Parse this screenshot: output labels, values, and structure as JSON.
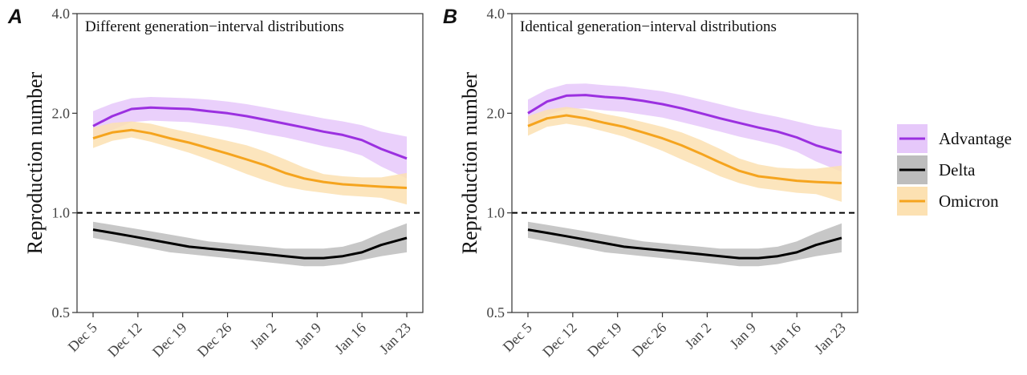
{
  "colors": {
    "advantage": "#9B30E0",
    "advantage_band": "#E6C8FA",
    "delta": "#000000",
    "delta_band": "#BDBDBD",
    "omicron": "#F5A41E",
    "omicron_band": "#FCE1B2"
  },
  "legend": {
    "items": [
      {
        "key": "advantage",
        "label": "Advantage"
      },
      {
        "key": "delta",
        "label": "Delta"
      },
      {
        "key": "omicron",
        "label": "Omicron"
      }
    ]
  },
  "chart_data": [
    {
      "type": "line",
      "panel_label": "A",
      "title": "Different generation−interval distributions",
      "ylabel": "Reproduction number",
      "xlabel": "",
      "y_scale": "log",
      "ylim": [
        0.5,
        4.0
      ],
      "y_ticks": [
        0.5,
        1.0,
        2.0,
        4.0
      ],
      "y_tick_labels": [
        "0.5",
        "1.0",
        "2.0",
        "4.0"
      ],
      "x_dates": [
        "Dec 5",
        "Dec 8",
        "Dec 11",
        "Dec 14",
        "Dec 17",
        "Dec 20",
        "Dec 23",
        "Dec 26",
        "Dec 29",
        "Jan 1",
        "Jan 4",
        "Jan 7",
        "Jan 10",
        "Jan 13",
        "Jan 16",
        "Jan 19",
        "Jan 23"
      ],
      "x_tick_labels": [
        "Dec 5",
        "Dec 12",
        "Dec 19",
        "Dec 26",
        "Jan 2",
        "Jan 9",
        "Jan 16",
        "Jan 23"
      ],
      "reference_line": 1.0,
      "grid": false,
      "series": [
        {
          "name": "Advantage",
          "key": "advantage",
          "values": [
            1.83,
            1.96,
            2.06,
            2.08,
            2.07,
            2.06,
            2.03,
            2.0,
            1.96,
            1.91,
            1.86,
            1.81,
            1.76,
            1.72,
            1.66,
            1.56,
            1.46
          ],
          "lower": [
            1.65,
            1.78,
            1.88,
            1.9,
            1.89,
            1.88,
            1.85,
            1.82,
            1.78,
            1.73,
            1.69,
            1.64,
            1.59,
            1.55,
            1.49,
            1.38,
            1.27
          ],
          "upper": [
            2.03,
            2.14,
            2.22,
            2.24,
            2.23,
            2.22,
            2.2,
            2.17,
            2.13,
            2.08,
            2.03,
            1.98,
            1.93,
            1.89,
            1.84,
            1.76,
            1.7
          ]
        },
        {
          "name": "Delta",
          "key": "delta",
          "values": [
            0.89,
            0.87,
            0.85,
            0.83,
            0.81,
            0.79,
            0.78,
            0.77,
            0.76,
            0.75,
            0.74,
            0.73,
            0.73,
            0.74,
            0.76,
            0.8,
            0.84
          ],
          "lower": [
            0.84,
            0.82,
            0.8,
            0.78,
            0.76,
            0.75,
            0.74,
            0.73,
            0.72,
            0.71,
            0.7,
            0.69,
            0.69,
            0.7,
            0.72,
            0.74,
            0.76
          ],
          "upper": [
            0.94,
            0.92,
            0.9,
            0.88,
            0.86,
            0.84,
            0.82,
            0.81,
            0.8,
            0.79,
            0.78,
            0.78,
            0.78,
            0.79,
            0.82,
            0.87,
            0.93
          ]
        },
        {
          "name": "Omicron",
          "key": "omicron",
          "values": [
            1.68,
            1.75,
            1.78,
            1.74,
            1.68,
            1.63,
            1.57,
            1.51,
            1.45,
            1.39,
            1.32,
            1.27,
            1.24,
            1.22,
            1.21,
            1.2,
            1.19
          ],
          "lower": [
            1.57,
            1.65,
            1.69,
            1.64,
            1.58,
            1.52,
            1.45,
            1.38,
            1.31,
            1.25,
            1.2,
            1.17,
            1.15,
            1.13,
            1.12,
            1.11,
            1.06
          ],
          "upper": [
            1.81,
            1.87,
            1.89,
            1.86,
            1.8,
            1.75,
            1.7,
            1.65,
            1.6,
            1.53,
            1.45,
            1.37,
            1.31,
            1.29,
            1.28,
            1.28,
            1.32
          ]
        }
      ]
    },
    {
      "type": "line",
      "panel_label": "B",
      "title": "Identical generation−interval distributions",
      "ylabel": "Reproduction number",
      "xlabel": "",
      "y_scale": "log",
      "ylim": [
        0.5,
        4.0
      ],
      "y_ticks": [
        0.5,
        1.0,
        2.0,
        4.0
      ],
      "y_tick_labels": [
        "0.5",
        "1.0",
        "2.0",
        "4.0"
      ],
      "x_dates": [
        "Dec 5",
        "Dec 8",
        "Dec 11",
        "Dec 14",
        "Dec 17",
        "Dec 20",
        "Dec 23",
        "Dec 26",
        "Dec 29",
        "Jan 1",
        "Jan 4",
        "Jan 7",
        "Jan 10",
        "Jan 13",
        "Jan 16",
        "Jan 19",
        "Jan 23"
      ],
      "x_tick_labels": [
        "Dec 5",
        "Dec 12",
        "Dec 19",
        "Dec 26",
        "Jan 2",
        "Jan 9",
        "Jan 16",
        "Jan 23"
      ],
      "reference_line": 1.0,
      "grid": false,
      "series": [
        {
          "name": "Advantage",
          "key": "advantage",
          "values": [
            2.0,
            2.17,
            2.26,
            2.27,
            2.24,
            2.22,
            2.18,
            2.13,
            2.07,
            2.0,
            1.93,
            1.87,
            1.81,
            1.76,
            1.69,
            1.6,
            1.52
          ],
          "lower": [
            1.82,
            1.98,
            2.06,
            2.07,
            2.04,
            2.02,
            1.98,
            1.94,
            1.88,
            1.82,
            1.76,
            1.7,
            1.65,
            1.6,
            1.53,
            1.43,
            1.33
          ],
          "upper": [
            2.2,
            2.36,
            2.45,
            2.46,
            2.43,
            2.41,
            2.37,
            2.33,
            2.27,
            2.2,
            2.13,
            2.06,
            2.0,
            1.95,
            1.89,
            1.83,
            1.78
          ]
        },
        {
          "name": "Delta",
          "key": "delta",
          "values": [
            0.89,
            0.87,
            0.85,
            0.83,
            0.81,
            0.79,
            0.78,
            0.77,
            0.76,
            0.75,
            0.74,
            0.73,
            0.73,
            0.74,
            0.76,
            0.8,
            0.84
          ],
          "lower": [
            0.84,
            0.82,
            0.8,
            0.78,
            0.76,
            0.75,
            0.74,
            0.73,
            0.72,
            0.71,
            0.7,
            0.69,
            0.69,
            0.7,
            0.72,
            0.74,
            0.76
          ],
          "upper": [
            0.94,
            0.92,
            0.9,
            0.88,
            0.86,
            0.84,
            0.82,
            0.81,
            0.8,
            0.79,
            0.78,
            0.78,
            0.78,
            0.79,
            0.82,
            0.87,
            0.93
          ]
        },
        {
          "name": "Omicron",
          "key": "omicron",
          "values": [
            1.83,
            1.93,
            1.97,
            1.93,
            1.87,
            1.82,
            1.75,
            1.68,
            1.6,
            1.51,
            1.42,
            1.34,
            1.29,
            1.27,
            1.25,
            1.24,
            1.23
          ],
          "lower": [
            1.71,
            1.82,
            1.86,
            1.82,
            1.76,
            1.7,
            1.62,
            1.54,
            1.45,
            1.37,
            1.29,
            1.23,
            1.19,
            1.17,
            1.15,
            1.14,
            1.08
          ],
          "upper": [
            1.96,
            2.05,
            2.09,
            2.05,
            1.99,
            1.94,
            1.88,
            1.82,
            1.75,
            1.66,
            1.56,
            1.46,
            1.4,
            1.37,
            1.36,
            1.36,
            1.39
          ]
        }
      ]
    }
  ]
}
